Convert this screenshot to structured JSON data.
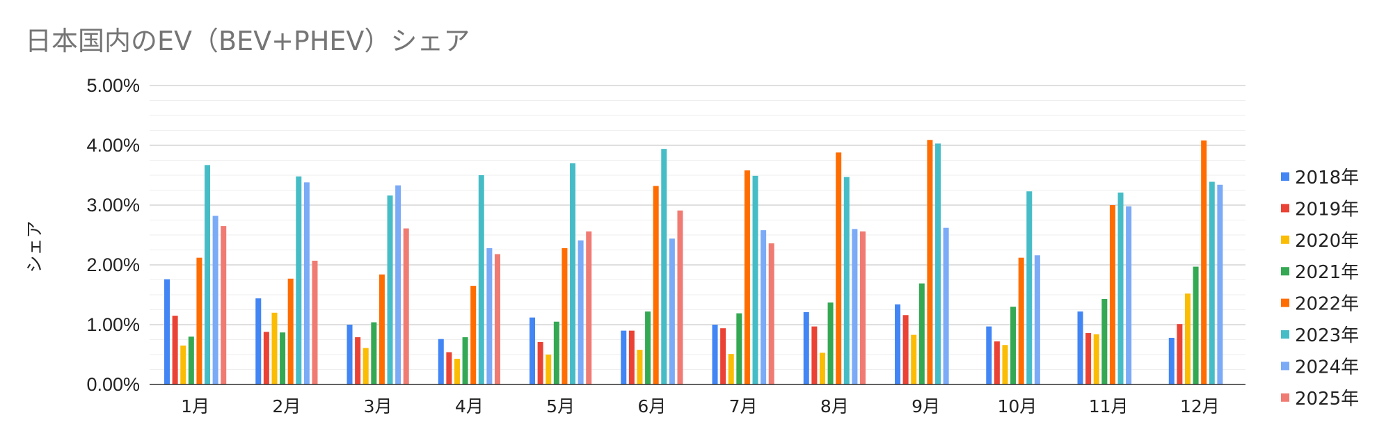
{
  "chart_data": {
    "type": "bar",
    "title": "日本国内のEV（BEV+PHEV）シェア",
    "xlabel": "",
    "ylabel": "シェア",
    "ylim": [
      0,
      0.05
    ],
    "yticks": [
      "0.00%",
      "1.00%",
      "2.00%",
      "3.00%",
      "4.00%",
      "5.00%"
    ],
    "grid": true,
    "legend_position": "right",
    "categories": [
      "1月",
      "2月",
      "3月",
      "4月",
      "5月",
      "6月",
      "7月",
      "8月",
      "9月",
      "10月",
      "11月",
      "12月"
    ],
    "series": [
      {
        "name": "2018年",
        "color": "#4285f4",
        "values": [
          0.0176,
          0.0144,
          0.01,
          0.0076,
          0.0112,
          0.009,
          0.01,
          0.0121,
          0.0134,
          0.0097,
          0.0122,
          0.0078
        ]
      },
      {
        "name": "2019年",
        "color": "#ea4335",
        "values": [
          0.0115,
          0.0088,
          0.0079,
          0.0054,
          0.0071,
          0.009,
          0.0094,
          0.0097,
          0.0116,
          0.0072,
          0.0086,
          0.0101
        ]
      },
      {
        "name": "2020年",
        "color": "#fbbc04",
        "values": [
          0.0065,
          0.012,
          0.0061,
          0.0043,
          0.005,
          0.0058,
          0.0051,
          0.0053,
          0.0083,
          0.0066,
          0.0084,
          0.0152
        ]
      },
      {
        "name": "2021年",
        "color": "#34a853",
        "values": [
          0.008,
          0.0087,
          0.0104,
          0.0079,
          0.0105,
          0.0122,
          0.0119,
          0.0137,
          0.0169,
          0.013,
          0.0143,
          0.0197
        ]
      },
      {
        "name": "2022年",
        "color": "#ff6d01",
        "values": [
          0.0212,
          0.0177,
          0.0184,
          0.0165,
          0.0228,
          0.0332,
          0.0358,
          0.0388,
          0.0409,
          0.0212,
          0.03,
          0.0408
        ]
      },
      {
        "name": "2023年",
        "color": "#46bdc6",
        "values": [
          0.0367,
          0.0348,
          0.0316,
          0.035,
          0.037,
          0.0394,
          0.0349,
          0.0347,
          0.0403,
          0.0323,
          0.0321,
          0.0339
        ]
      },
      {
        "name": "2024年",
        "color": "#7baaf7",
        "values": [
          0.0282,
          0.0338,
          0.0333,
          0.0228,
          0.0241,
          0.0244,
          0.0258,
          0.026,
          0.0262,
          0.0216,
          0.0298,
          0.0334
        ]
      },
      {
        "name": "2025年",
        "color": "#f07b72",
        "values": [
          0.0265,
          0.0207,
          0.0261,
          0.0218,
          0.0256,
          0.0291,
          0.0236,
          0.0256,
          null,
          null,
          null,
          null
        ]
      }
    ]
  }
}
